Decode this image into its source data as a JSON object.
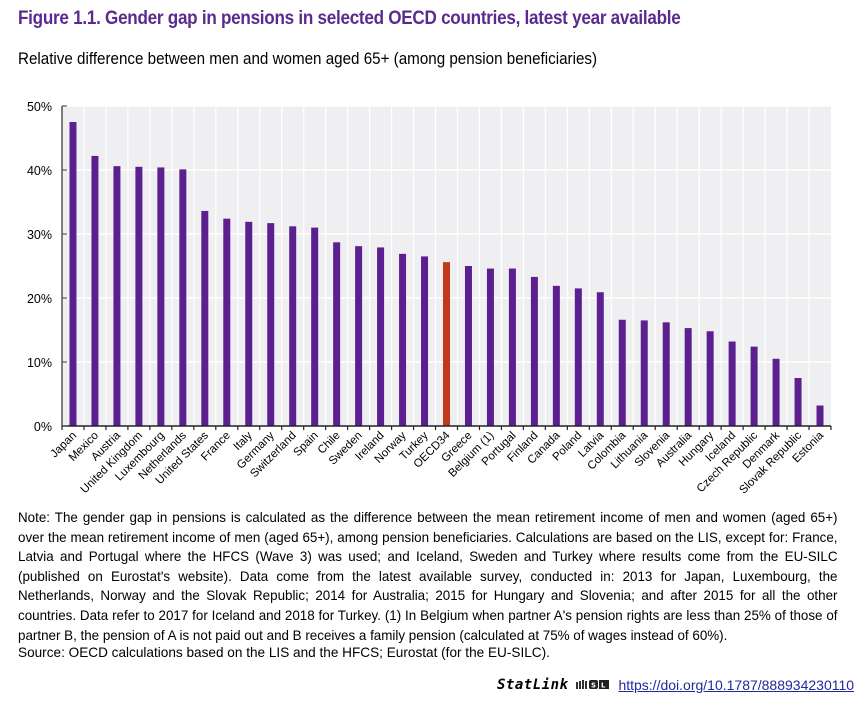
{
  "figure": {
    "title": "Figure 1.1. Gender gap in pensions in selected OECD countries, latest year available",
    "subtitle": "Relative difference between men and women aged 65+ (among pension beneficiaries)",
    "note": "Note: The gender gap in pensions is calculated as the difference between the mean retirement income of men and women (aged 65+) over the mean retirement income of men (aged 65+), among pension beneficiaries. Calculations are based on the LIS, except for: France, Latvia and Portugal where the HFCS (Wave 3) was used; and Iceland, Sweden and Turkey where results come from the EU-SILC (published on Eurostat's website). Data come from the latest available survey, conducted in: 2013 for Japan, Luxembourg, the Netherlands, Norway and the Slovak Republic; 2014 for Australia; 2015 for Hungary and Slovenia; and after 2015 for all the other countries. Data refer to 2017 for Iceland and 2018 for Turkey. (1) In Belgium when partner A's pension rights are less than 25% of those of partner B, the pension of A is not paid out and B receives a family pension (calculated at 75% of wages instead of 60%).",
    "source": "Source: OECD calculations based on the LIS and the HFCS; Eurostat (for the EU-SILC).",
    "statlink_label": "StatLink",
    "statlink_icon": "statlink-logo-icon",
    "statlink_url": "https://doi.org/10.1787/888934230110"
  },
  "colors": {
    "title": "#5b2a8e",
    "bar": "#5b1f8f",
    "highlight_bar": "#c0391b",
    "plot_background": "#efeff1",
    "gridline": "#ffffff",
    "link": "#1f2a9c"
  },
  "chart_data": {
    "type": "bar",
    "title": "Gender gap in pensions in selected OECD countries, latest year available",
    "subtitle": "Relative difference between men and women aged 65+ (among pension beneficiaries)",
    "xlabel": "",
    "ylabel": "",
    "ylim": [
      0,
      50
    ],
    "yticks": [
      0,
      10,
      20,
      30,
      40,
      50
    ],
    "ytick_labels": [
      "0%",
      "10%",
      "20%",
      "30%",
      "40%",
      "50%"
    ],
    "grid": true,
    "legend": "none",
    "highlight_category": "OECD34",
    "categories": [
      "Japan",
      "Mexico",
      "Austria",
      "United Kingdom",
      "Luxembourg",
      "Netherlands",
      "United States",
      "France",
      "Italy",
      "Germany",
      "Switzerland",
      "Spain",
      "Chile",
      "Sweden",
      "Ireland",
      "Norway",
      "Turkey",
      "OECD34",
      "Greece",
      "Belgium (1)",
      "Portugal",
      "Finland",
      "Canada",
      "Poland",
      "Latvia",
      "Colombia",
      "Lithuania",
      "Slovenia",
      "Australia",
      "Hungary",
      "Iceland",
      "Czech Republic",
      "Denmark",
      "Slovak Republic",
      "Estonia"
    ],
    "values": [
      47.5,
      42.2,
      40.6,
      40.5,
      40.4,
      40.1,
      33.6,
      32.4,
      31.9,
      31.7,
      31.2,
      31.0,
      28.7,
      28.1,
      27.9,
      26.9,
      26.5,
      25.6,
      25.0,
      24.6,
      24.6,
      23.3,
      21.9,
      21.5,
      20.9,
      16.6,
      16.5,
      16.2,
      15.3,
      14.8,
      13.2,
      12.4,
      10.5,
      7.5,
      3.2
    ]
  }
}
